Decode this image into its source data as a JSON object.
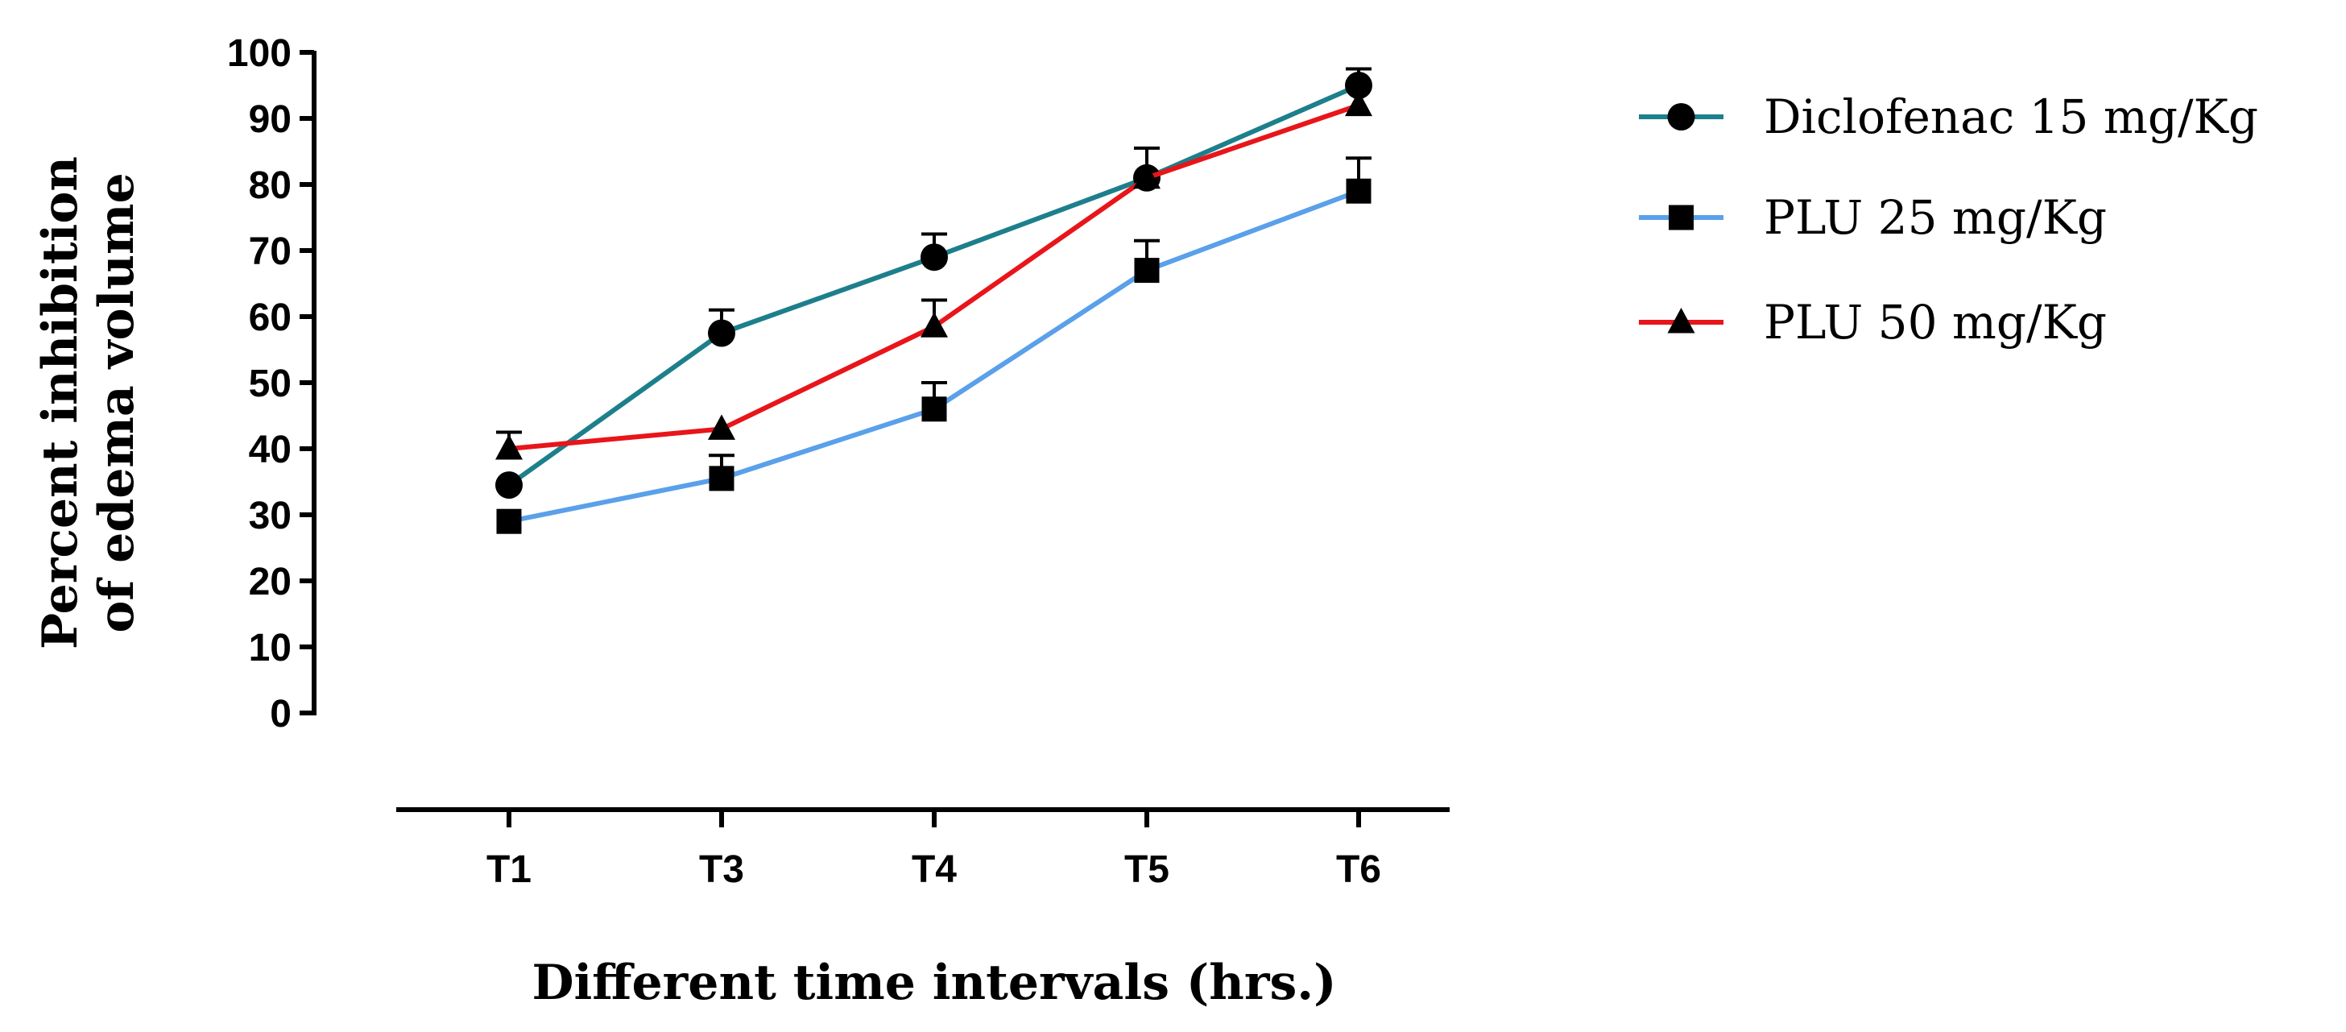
{
  "chart_data": {
    "type": "line",
    "title": "",
    "xlabel": "Different time intervals (hrs.)",
    "ylabel_lines": [
      "Percent inhibition",
      "of edema volume"
    ],
    "categories": [
      "T1",
      "T3",
      "T4",
      "T5",
      "T6"
    ],
    "ylim": [
      0,
      100
    ],
    "yticks": [
      0,
      10,
      20,
      30,
      40,
      50,
      60,
      70,
      80,
      90,
      100
    ],
    "grid": false,
    "legend_position": "top-right",
    "series": [
      {
        "name": "Diclofenac 15 mg/Kg",
        "marker": "circle",
        "color": "#1d7f8c",
        "values": [
          34.5,
          57.5,
          69,
          81,
          95
        ],
        "errors": [
          0,
          3.5,
          3.5,
          4.5,
          2.5
        ]
      },
      {
        "name": "PLU 25 mg/Kg",
        "marker": "square",
        "color": "#5aa0ea",
        "values": [
          29,
          35.5,
          46,
          67,
          79
        ],
        "errors": [
          0,
          3.5,
          4,
          4.5,
          5
        ]
      },
      {
        "name": "PLU 50 mg/Kg",
        "marker": "triangle",
        "color": "#e8151a",
        "values": [
          40,
          43,
          58.5,
          81,
          92
        ],
        "errors": [
          2.5,
          0,
          4,
          0,
          0
        ]
      }
    ]
  }
}
